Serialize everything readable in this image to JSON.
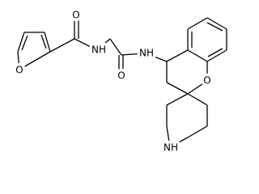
{
  "atoms": [
    {
      "label": "O"
    },
    {
      "label": "O"
    },
    {
      "label": "NH"
    },
    {
      "label": "O"
    },
    {
      "label": "NH"
    },
    {
      "label": "O"
    },
    {
      "label": "NH"
    }
  ]
}
